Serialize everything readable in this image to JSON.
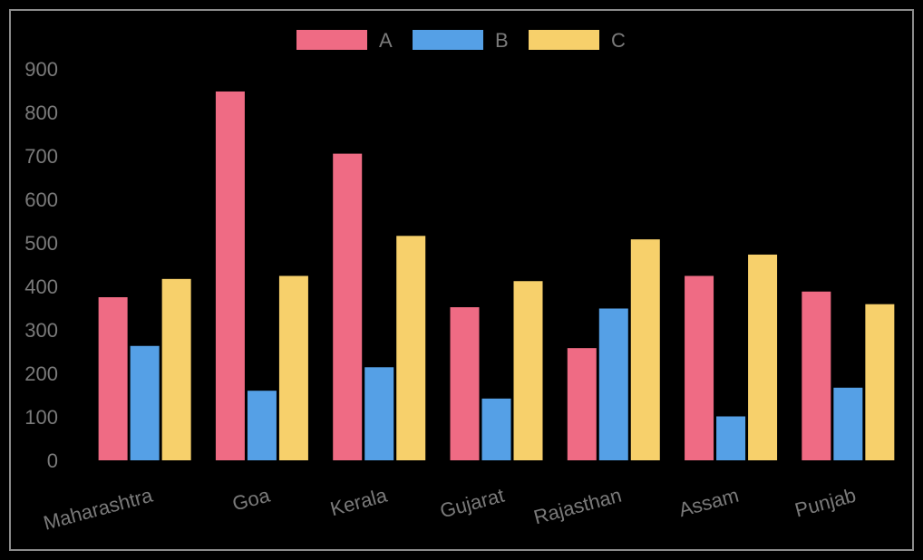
{
  "chart_data": {
    "type": "bar",
    "title": "",
    "xlabel": "",
    "ylabel": "",
    "categories": [
      "Maharashtra",
      "Goa",
      "Kerala",
      "Gujarat",
      "Rajasthan",
      "Assam",
      "Punjab"
    ],
    "series": [
      {
        "name": "A",
        "color": "#ef6b84",
        "values": [
          375,
          848,
          705,
          352,
          258,
          424,
          388
        ]
      },
      {
        "name": "B",
        "color": "#55a0e6",
        "values": [
          263,
          160,
          214,
          142,
          349,
          101,
          167
        ]
      },
      {
        "name": "C",
        "color": "#f7d06b",
        "values": [
          417,
          424,
          516,
          412,
          508,
          473,
          359
        ]
      }
    ],
    "ylim": [
      0,
      900
    ],
    "yticks": [
      0,
      100,
      200,
      300,
      400,
      500,
      600,
      700,
      800,
      900
    ],
    "grid": false,
    "legend": "top-center"
  }
}
